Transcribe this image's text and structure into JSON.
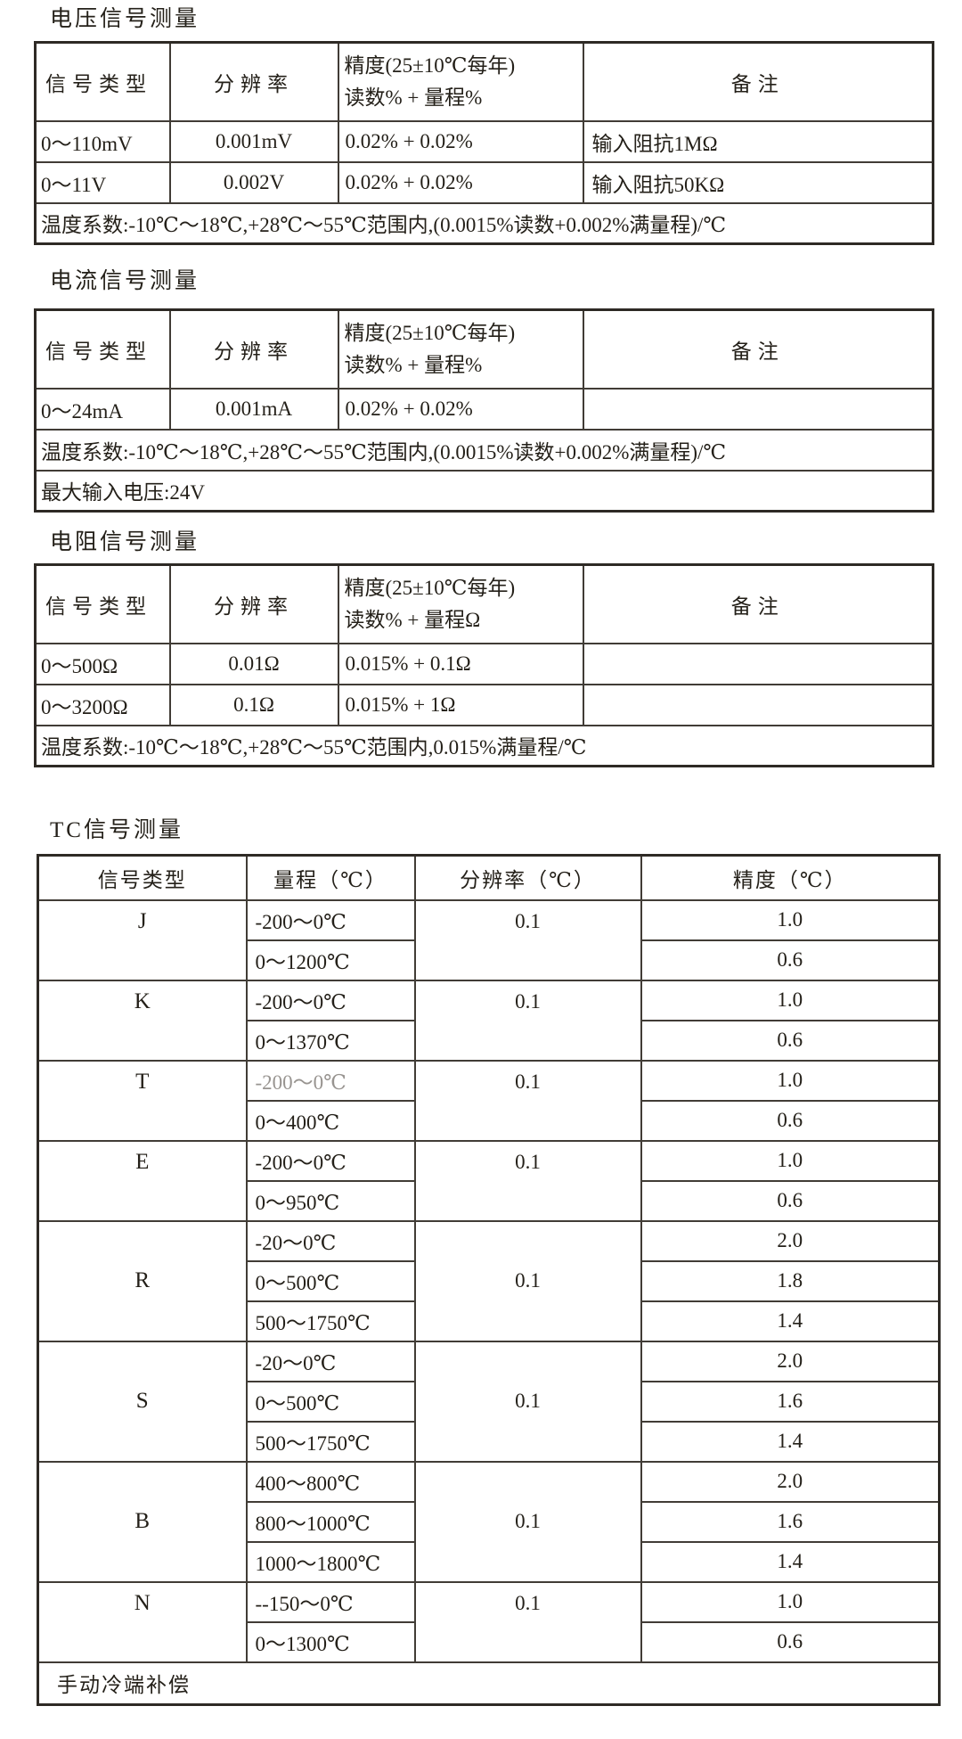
{
  "colors": {
    "background": "#ffffff",
    "text": "#242019",
    "border": "#413c36",
    "muted_text": "#989490"
  },
  "simple_tables": [
    {
      "title": "电压信号测量",
      "columns": [
        "信号类型",
        "分辨率",
        {
          "line1": "精度(25±10℃每年)",
          "line2": "读数% + 量程%"
        },
        "备注"
      ],
      "rows": [
        [
          "0～110mV",
          "0.001mV",
          "0.02% + 0.02%",
          "输入阻抗1MΩ"
        ],
        [
          "0～11V",
          "0.002V",
          "0.02% + 0.02%",
          "输入阻抗50KΩ"
        ]
      ],
      "footer_lines": [
        "温度系数:-10℃～18℃,+28℃～55℃范围内,(0.0015%读数+0.002%满量程)/℃"
      ]
    },
    {
      "title": "电流信号测量",
      "columns": [
        "信号类型",
        "分辨率",
        {
          "line1": "精度(25±10℃每年)",
          "line2": "读数% + 量程%"
        },
        "备注"
      ],
      "rows": [
        [
          "0～24mA",
          "0.001mA",
          "0.02% + 0.02%",
          ""
        ]
      ],
      "footer_lines": [
        "温度系数:-10℃～18℃,+28℃～55℃范围内,(0.0015%读数+0.002%满量程)/℃",
        "最大输入电压:24V"
      ]
    },
    {
      "title": "电阻信号测量",
      "columns": [
        "信号类型",
        "分辨率",
        {
          "line1": "精度(25±10℃每年)",
          "line2": "读数% + 量程Ω"
        },
        "备注"
      ],
      "rows": [
        [
          "0～500Ω",
          "0.01Ω",
          "0.015% + 0.1Ω",
          ""
        ],
        [
          "0～3200Ω",
          "0.1Ω",
          "0.015% + 1Ω",
          ""
        ]
      ],
      "footer_lines": [
        "温度系数:-10℃～18℃,+28℃～55℃范围内,0.015%满量程/℃"
      ]
    }
  ],
  "tc_table": {
    "title": "TC信号测量",
    "columns": [
      "信号类型",
      "量程（℃）",
      "分辨率（℃）",
      "精度（℃）"
    ],
    "groups": [
      {
        "type": "J",
        "resolution": "0.1",
        "rows": [
          {
            "range": "-200～0℃",
            "accuracy": "1.0"
          },
          {
            "range": "0～1200℃",
            "accuracy": "0.6"
          }
        ]
      },
      {
        "type": "K",
        "resolution": "0.1",
        "rows": [
          {
            "range": "-200～0℃",
            "accuracy": "1.0"
          },
          {
            "range": "0～1370℃",
            "accuracy": "0.6"
          }
        ]
      },
      {
        "type": "T",
        "resolution": "0.1",
        "rows": [
          {
            "range": "-200～0℃",
            "accuracy": "1.0",
            "muted": true
          },
          {
            "range": "0～400℃",
            "accuracy": "0.6"
          }
        ]
      },
      {
        "type": "E",
        "resolution": "0.1",
        "rows": [
          {
            "range": "-200～0℃",
            "accuracy": "1.0"
          },
          {
            "range": "0～950℃",
            "accuracy": "0.6"
          }
        ]
      },
      {
        "type": "R",
        "resolution": "0.1",
        "rows": [
          {
            "range": "-20～0℃",
            "accuracy": "2.0"
          },
          {
            "range": "0～500℃",
            "accuracy": "1.8"
          },
          {
            "range": "500～1750℃",
            "accuracy": "1.4"
          }
        ]
      },
      {
        "type": "S",
        "resolution": "0.1",
        "rows": [
          {
            "range": "-20～0℃",
            "accuracy": "2.0"
          },
          {
            "range": "0～500℃",
            "accuracy": "1.6"
          },
          {
            "range": "500～1750℃",
            "accuracy": "1.4"
          }
        ]
      },
      {
        "type": "B",
        "resolution": "0.1",
        "rows": [
          {
            "range": "400～800℃",
            "accuracy": "2.0"
          },
          {
            "range": "800～1000℃",
            "accuracy": "1.6"
          },
          {
            "range": "1000～1800℃",
            "accuracy": "1.4"
          }
        ]
      },
      {
        "type": "N",
        "resolution": "0.1",
        "rows": [
          {
            "range": "--150～0℃",
            "accuracy": "1.0"
          },
          {
            "range": "0～1300℃",
            "accuracy": "0.6"
          }
        ]
      }
    ],
    "footer": "手动冷端补偿"
  }
}
